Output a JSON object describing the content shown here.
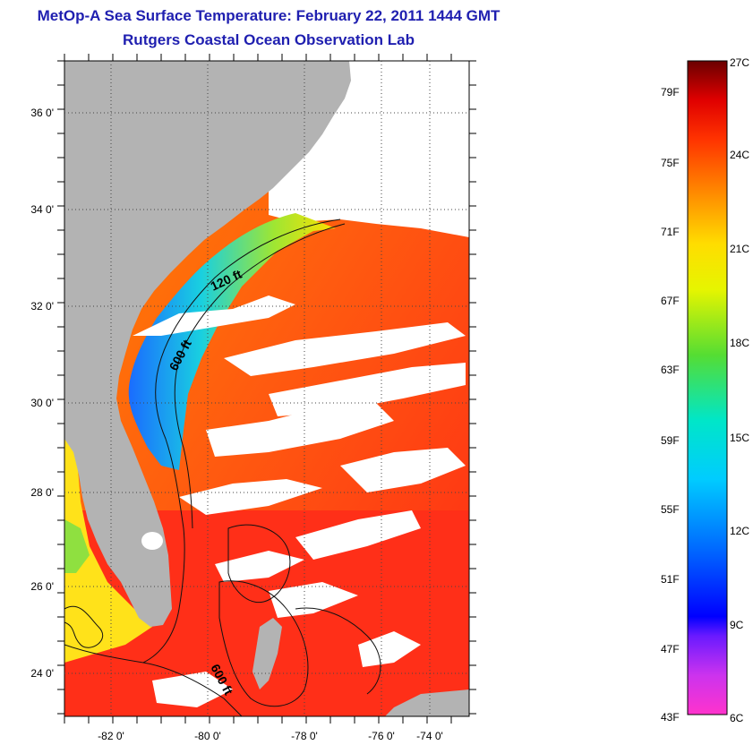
{
  "header": {
    "title_line1": "MetOp-A Sea Surface Temperature:  February 22, 2011 1444 GMT",
    "title_line2": "Rutgers Coastal Ocean Observation Lab"
  },
  "map": {
    "lon_ticks": [
      "-82 0'",
      "-80 0'",
      "-78 0'",
      "-76 0'",
      "-74 0'"
    ],
    "lat_ticks": [
      "36 0'",
      "34 0'",
      "32 0'",
      "30 0'",
      "28 0'",
      "26 0'",
      "24 0'"
    ],
    "contour_labels": [
      "120 ft",
      "600 ft",
      "600 ft"
    ],
    "colors": {
      "land": "#b3b3b3",
      "cloud": "#ffffff",
      "warm": "#ff3a1a",
      "mid": "#ff8a00",
      "cool": "#ffe000",
      "cold": "#1a8cff"
    }
  },
  "colorbar": {
    "celsius_labels": [
      "27C",
      "24C",
      "21C",
      "18C",
      "15C",
      "12C",
      "9C",
      "6C"
    ],
    "fahrenheit_labels": [
      "79F",
      "75F",
      "71F",
      "67F",
      "63F",
      "59F",
      "55F",
      "51F",
      "47F",
      "43F"
    ],
    "gradient": [
      "#ff33cc",
      "#9933ff",
      "#0000ff",
      "#0088ff",
      "#00eeee",
      "#33dd66",
      "#aaee00",
      "#ffff00",
      "#ffaa00",
      "#ff5500",
      "#ff0000",
      "#cc0000",
      "#7a0000"
    ]
  }
}
